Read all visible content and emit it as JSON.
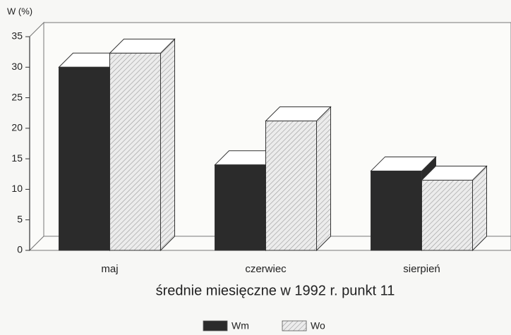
{
  "chart_data": {
    "type": "bar3d",
    "y_label": "W (%)",
    "x_label": "średnie miesięczne w 1992 r. punkt 11",
    "categories": [
      "maj",
      "czerwiec",
      "sierpień"
    ],
    "series": [
      {
        "name": "Wm",
        "color": "#2b2b2b",
        "hatch": false,
        "values": [
          30,
          14,
          13
        ]
      },
      {
        "name": "Wo",
        "color": "#ececec",
        "hatch": true,
        "values": [
          32.3,
          21.2,
          11.5
        ]
      }
    ],
    "ylim": [
      0,
      35
    ],
    "yticks": [
      0,
      5,
      10,
      15,
      20,
      25,
      30,
      35
    ],
    "legend": "bottom"
  }
}
